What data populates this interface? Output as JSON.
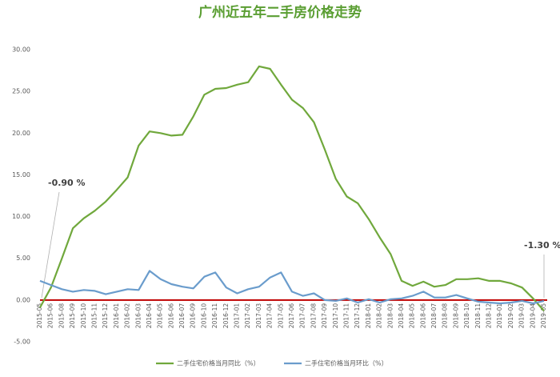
{
  "chart_data": {
    "type": "line",
    "title": "广州近五年二手房价格走势",
    "categories": [
      "2015-05",
      "2015-06",
      "2015-08",
      "2015-09",
      "2015-10",
      "2015-11",
      "2015-12",
      "2016-01",
      "2016-02",
      "2016-03",
      "2016-04",
      "2016-05",
      "2016-06",
      "2016-07",
      "2016-09",
      "2016-10",
      "2016-11",
      "2016-12",
      "2017-01",
      "2017-02",
      "2017-03",
      "2017-04",
      "2017-05",
      "2017-06",
      "2017-07",
      "2017-08",
      "2017-09",
      "2017-10",
      "2017-11",
      "2017-12",
      "2018-01",
      "2018-02",
      "2018-03",
      "2018-04",
      "2018-05",
      "2018-06",
      "2018-07",
      "2018-08",
      "2018-09",
      "2018-10",
      "2018-11",
      "2018-12",
      "2019-01",
      "2019-02",
      "2019-03",
      "2019-04",
      "2019-05"
    ],
    "series": [
      {
        "name": "二手住宅价格当月同比（%）",
        "color": "#70a83c",
        "values": [
          -0.9,
          1.5,
          5.0,
          8.6,
          9.8,
          10.7,
          11.8,
          13.2,
          14.7,
          18.5,
          20.2,
          20.0,
          19.7,
          19.8,
          22.0,
          24.6,
          25.3,
          25.4,
          25.8,
          26.1,
          28.0,
          27.7,
          25.8,
          24.0,
          23.0,
          21.3,
          18.0,
          14.5,
          12.4,
          11.6,
          9.7,
          7.5,
          5.5,
          2.3,
          1.7,
          2.2,
          1.6,
          1.8,
          2.5,
          2.5,
          2.6,
          2.3,
          2.3,
          2.0,
          1.5,
          0.2,
          -1.3
        ]
      },
      {
        "name": "二手住宅价格当月环比（%）",
        "color": "#6a9ccc",
        "values": [
          2.3,
          1.8,
          1.3,
          1.0,
          1.2,
          1.1,
          0.7,
          1.0,
          1.3,
          1.2,
          3.5,
          2.5,
          1.9,
          1.6,
          1.4,
          2.8,
          3.3,
          1.5,
          0.8,
          1.3,
          1.6,
          2.7,
          3.3,
          1.0,
          0.5,
          0.8,
          0.0,
          -0.1,
          0.2,
          -0.3,
          0.1,
          -0.3,
          0.1,
          0.2,
          0.5,
          1.0,
          0.3,
          0.3,
          0.6,
          0.2,
          -0.2,
          -0.3,
          -0.4,
          -0.3,
          -0.1,
          -0.4,
          -0.1
        ]
      }
    ],
    "ylim": [
      -5,
      30
    ],
    "yticks": [
      {
        "value": -5,
        "label": "-5.00"
      },
      {
        "value": 0,
        "label": "0.00"
      },
      {
        "value": 5,
        "label": "5.00"
      },
      {
        "value": 10,
        "label": "10.00"
      },
      {
        "value": 15,
        "label": "15.00"
      },
      {
        "value": 20,
        "label": "20.00"
      },
      {
        "value": 25,
        "label": "25.00"
      },
      {
        "value": 30,
        "label": "30.00"
      }
    ],
    "grid": false,
    "zero_line_color": "#c00000",
    "annotations": [
      "-0.90 %",
      "-1.30 %"
    ]
  }
}
